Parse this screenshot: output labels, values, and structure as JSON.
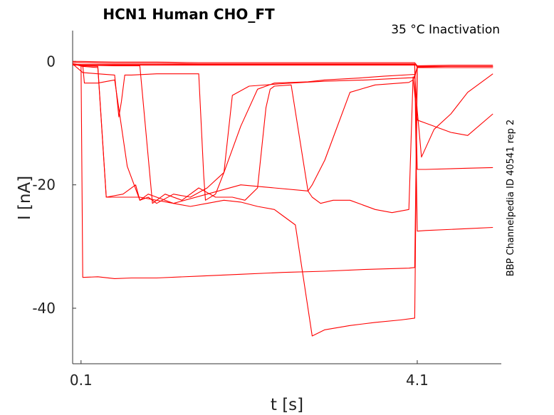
{
  "chart_data": {
    "type": "line",
    "title": "HCN1  Human  CHO_FT",
    "annotation": "35 °C  Inactivation",
    "side_label": "BBP Channelpedia ID 40541 rep 2",
    "xlabel": "t [s]",
    "ylabel": "I [nA]",
    "xlim": [
      0.0,
      5.1
    ],
    "ylim": [
      -49,
      5
    ],
    "xticks": [
      {
        "value": 0.1,
        "label": "0.1"
      },
      {
        "value": 4.1,
        "label": "4.1"
      }
    ],
    "yticks": [
      {
        "value": 0,
        "label": "0"
      },
      {
        "value": -20,
        "label": "-20"
      },
      {
        "value": -40,
        "label": "-40"
      }
    ],
    "grid": false,
    "line_color": "#ff0000",
    "series": [
      {
        "x": [
          0.0,
          0.06,
          0.1,
          0.12,
          0.3,
          0.5,
          0.7,
          1.0,
          1.5,
          2.0,
          2.5,
          3.0,
          3.5,
          4.0,
          4.07,
          4.1,
          4.5,
          5.0
        ],
        "y": [
          -0.5,
          -0.5,
          -0.5,
          -35,
          -34.9,
          -35.2,
          -35.1,
          -35.1,
          -34.8,
          -34.5,
          -34.2,
          -34.0,
          -33.7,
          -33.5,
          -33.4,
          -0.8,
          -0.8,
          -0.8
        ]
      },
      {
        "x": [
          0.0,
          0.1,
          0.12,
          0.5,
          1.5,
          2.5,
          3.5,
          4.07,
          4.1,
          4.2,
          4.7,
          5.0
        ],
        "y": [
          -0.5,
          -0.5,
          -0.5,
          -0.5,
          -0.5,
          -0.5,
          -0.5,
          -0.5,
          -17.5,
          -17.5,
          -17.3,
          -17.2
        ]
      },
      {
        "x": [
          0.0,
          0.1,
          0.12,
          0.5,
          1.5,
          2.5,
          3.5,
          4.07,
          4.1,
          4.2,
          4.7,
          5.0
        ],
        "y": [
          -0.6,
          -0.6,
          -0.6,
          -0.6,
          -0.6,
          -0.6,
          -0.6,
          -0.6,
          -27.5,
          -27.4,
          -27.1,
          -26.9
        ]
      },
      {
        "x": [
          0.0,
          0.12,
          0.14,
          0.3,
          0.5,
          0.65,
          0.8,
          0.9,
          1.0,
          1.2,
          1.4,
          1.6,
          1.8,
          2.0,
          2.2,
          2.4,
          2.5,
          2.65,
          2.7,
          2.85,
          3.0,
          3.3,
          3.6,
          3.9,
          4.07,
          4.1,
          4.3,
          4.6,
          5.0
        ],
        "y": [
          -0.5,
          -0.6,
          -3.5,
          -3.5,
          -3.0,
          -17.0,
          -22.5,
          -21.5,
          -22.0,
          -23.0,
          -23.5,
          -23.0,
          -22.5,
          -22.8,
          -23.5,
          -24.0,
          -25.0,
          -26.5,
          -31.0,
          -44.5,
          -43.5,
          -42.8,
          -42.3,
          -41.9,
          -41.6,
          -1.0,
          -1.0,
          -1.0,
          -1.0
        ]
      },
      {
        "x": [
          0.0,
          0.12,
          0.3,
          0.5,
          0.55,
          0.58,
          0.62,
          0.7,
          1.0,
          1.5,
          1.56,
          1.58,
          1.7,
          1.8,
          1.9,
          2.1,
          2.5,
          3.0,
          3.5,
          4.07,
          4.1,
          4.5,
          5.0
        ],
        "y": [
          -0.4,
          -1.8,
          -2.0,
          -2.2,
          -9.0,
          -6.5,
          -2.2,
          -2.2,
          -2.0,
          -2.0,
          -18.5,
          -22.5,
          -21.5,
          -18.0,
          -5.5,
          -4.0,
          -3.6,
          -3.2,
          -3.0,
          -2.6,
          -0.8,
          -0.8,
          -0.8
        ]
      },
      {
        "x": [
          0.0,
          0.12,
          0.3,
          0.4,
          0.6,
          0.75,
          0.8,
          0.9,
          1.0,
          1.2,
          1.4,
          1.6,
          1.8,
          2.0,
          2.2,
          2.4,
          2.8,
          3.0,
          3.4,
          3.7,
          4.07,
          4.1,
          4.15,
          4.3,
          4.5,
          4.7,
          5.0
        ],
        "y": [
          -0.4,
          -0.7,
          -0.8,
          -22.0,
          -21.5,
          -20.0,
          -22.5,
          -22.0,
          -23.0,
          -21.5,
          -22.0,
          -20.5,
          -18.0,
          -10.5,
          -4.5,
          -3.5,
          -3.3,
          -3.0,
          -2.7,
          -2.4,
          -2.1,
          -8.0,
          -15.5,
          -11.0,
          -8.5,
          -5.0,
          -2.0
        ]
      },
      {
        "x": [
          0.0,
          0.12,
          0.5,
          0.8,
          0.95,
          1.1,
          1.3,
          1.5,
          1.7,
          1.9,
          2.05,
          2.2,
          2.3,
          2.35,
          2.4,
          2.6,
          2.8,
          2.85,
          2.95,
          3.1,
          3.3,
          3.6,
          3.8,
          4.0,
          4.05,
          4.1,
          4.2,
          4.5,
          4.7,
          5.0
        ],
        "y": [
          -0.4,
          -0.6,
          -0.7,
          -0.7,
          -23.0,
          -21.5,
          -22.5,
          -20.5,
          -22.0,
          -22.0,
          -22.5,
          -20.5,
          -7.5,
          -4.5,
          -4.0,
          -3.8,
          -21.0,
          -22.0,
          -23.0,
          -22.5,
          -22.5,
          -24.0,
          -24.5,
          -24.0,
          -2.5,
          -9.5,
          -10.0,
          -11.5,
          -12.0,
          -8.5
        ]
      },
      {
        "x": [
          0.0,
          0.12,
          0.3,
          0.4,
          0.8,
          1.2,
          1.6,
          2.0,
          2.4,
          2.8,
          2.85,
          3.0,
          3.3,
          3.6,
          4.0,
          4.05,
          4.1,
          4.3,
          4.5,
          4.8,
          5.0
        ],
        "y": [
          -0.4,
          -0.8,
          -1.0,
          -22.0,
          -22.0,
          -23.0,
          -21.5,
          -20.0,
          -20.5,
          -21.0,
          -20.0,
          -16.0,
          -5.0,
          -3.8,
          -3.4,
          -3.0,
          -1.0,
          -1.0,
          -1.0,
          -1.0,
          -1.0
        ]
      },
      {
        "x": [
          0.0,
          0.1,
          0.5,
          1.0,
          1.5,
          2.0,
          2.5,
          3.0,
          3.5,
          4.07,
          4.1,
          4.5,
          5.0
        ],
        "y": [
          0.0,
          0.0,
          -0.1,
          -0.1,
          -0.2,
          -0.2,
          -0.2,
          -0.2,
          -0.2,
          -0.2,
          -0.7,
          -0.6,
          -0.6
        ]
      },
      {
        "x": [
          0.0,
          0.1,
          0.5,
          1.0,
          1.5,
          2.0,
          2.5,
          3.0,
          3.5,
          4.07,
          4.1,
          4.5,
          5.0
        ],
        "y": [
          -0.2,
          -0.2,
          -0.3,
          -0.3,
          -0.4,
          -0.4,
          -0.4,
          -0.4,
          -0.4,
          -0.4,
          -0.9,
          -0.8,
          -0.8
        ]
      }
    ]
  }
}
